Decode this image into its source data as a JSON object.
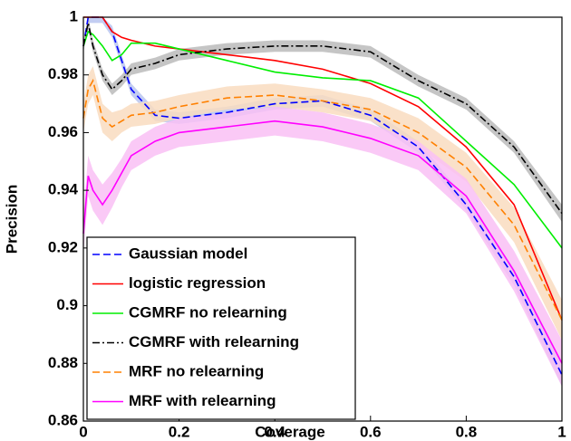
{
  "chart_data": {
    "type": "line",
    "xlabel": "Coverage",
    "ylabel": "Precision",
    "x": [
      0,
      0.01,
      0.02,
      0.04,
      0.06,
      0.08,
      0.1,
      0.15,
      0.2,
      0.3,
      0.4,
      0.5,
      0.6,
      0.7,
      0.8,
      0.9,
      1.0
    ],
    "xlim": [
      0,
      1
    ],
    "xticks": [
      0,
      0.2,
      0.4,
      0.6,
      0.8,
      1
    ],
    "ylim": [
      0.86,
      1
    ],
    "yticks": [
      0.86,
      0.88,
      0.9,
      0.92,
      0.94,
      0.96,
      0.98,
      1
    ],
    "legend": "lower-left",
    "series": [
      {
        "name": "Gaussian model",
        "color": "#0000ff",
        "dash": "dashed",
        "band_color": "#b8c4f0",
        "values": [
          0.99,
          1.0,
          1.0,
          1.0,
          0.995,
          0.985,
          0.975,
          0.966,
          0.965,
          0.967,
          0.97,
          0.971,
          0.966,
          0.955,
          0.935,
          0.91,
          0.876
        ],
        "upper": [
          0.992,
          1.0,
          1.0,
          1.0,
          0.997,
          0.987,
          0.977,
          0.968,
          0.967,
          0.969,
          0.972,
          0.973,
          0.968,
          0.957,
          0.937,
          0.913,
          0.88
        ],
        "lower": [
          0.988,
          0.998,
          0.998,
          0.998,
          0.993,
          0.983,
          0.973,
          0.964,
          0.963,
          0.965,
          0.968,
          0.969,
          0.964,
          0.953,
          0.933,
          0.907,
          0.872
        ]
      },
      {
        "name": "logistic regression",
        "color": "#ff0000",
        "dash": "solid",
        "values": [
          1.0,
          1.0,
          1.0,
          1.0,
          0.995,
          0.993,
          0.992,
          0.99,
          0.989,
          0.987,
          0.985,
          0.982,
          0.977,
          0.969,
          0.955,
          0.935,
          0.895
        ]
      },
      {
        "name": "CGMRF no relearning",
        "color": "#00ee00",
        "dash": "solid",
        "values": [
          0.99,
          0.995,
          0.994,
          0.99,
          0.985,
          0.987,
          0.991,
          0.991,
          0.989,
          0.985,
          0.981,
          0.979,
          0.978,
          0.972,
          0.957,
          0.942,
          0.92
        ]
      },
      {
        "name": "CGMRF with relearning",
        "color": "#000000",
        "dash": "dashdot",
        "band_color": "#bbbbbb",
        "values": [
          0.99,
          0.998,
          0.99,
          0.98,
          0.975,
          0.978,
          0.982,
          0.984,
          0.987,
          0.989,
          0.99,
          0.99,
          0.988,
          0.978,
          0.97,
          0.955,
          0.932
        ],
        "upper": [
          0.992,
          1.0,
          0.992,
          0.982,
          0.977,
          0.98,
          0.984,
          0.986,
          0.989,
          0.991,
          0.992,
          0.992,
          0.99,
          0.98,
          0.972,
          0.957,
          0.935
        ],
        "lower": [
          0.988,
          0.996,
          0.988,
          0.978,
          0.973,
          0.976,
          0.98,
          0.982,
          0.985,
          0.987,
          0.988,
          0.988,
          0.986,
          0.976,
          0.968,
          0.953,
          0.929
        ]
      },
      {
        "name": "MRF no relearning",
        "color": "#ff8000",
        "dash": "dashed",
        "band_color": "#f9dcbf",
        "values": [
          0.965,
          0.975,
          0.978,
          0.965,
          0.962,
          0.964,
          0.966,
          0.967,
          0.969,
          0.972,
          0.973,
          0.971,
          0.968,
          0.96,
          0.948,
          0.928,
          0.895
        ],
        "upper": [
          0.97,
          0.98,
          0.983,
          0.97,
          0.967,
          0.968,
          0.97,
          0.971,
          0.973,
          0.976,
          0.977,
          0.975,
          0.972,
          0.965,
          0.953,
          0.934,
          0.902
        ],
        "lower": [
          0.96,
          0.97,
          0.973,
          0.96,
          0.957,
          0.96,
          0.962,
          0.963,
          0.965,
          0.968,
          0.969,
          0.967,
          0.964,
          0.955,
          0.943,
          0.922,
          0.888
        ]
      },
      {
        "name": "MRF with relearning",
        "color": "#ff00ff",
        "dash": "solid",
        "band_color": "#f9bff5",
        "values": [
          0.925,
          0.945,
          0.94,
          0.935,
          0.94,
          0.946,
          0.952,
          0.957,
          0.96,
          0.962,
          0.964,
          0.962,
          0.958,
          0.952,
          0.938,
          0.912,
          0.88
        ],
        "upper": [
          0.932,
          0.952,
          0.947,
          0.942,
          0.946,
          0.951,
          0.957,
          0.962,
          0.965,
          0.967,
          0.969,
          0.967,
          0.963,
          0.957,
          0.944,
          0.919,
          0.888
        ],
        "lower": [
          0.918,
          0.938,
          0.933,
          0.928,
          0.934,
          0.941,
          0.947,
          0.952,
          0.955,
          0.957,
          0.959,
          0.957,
          0.953,
          0.947,
          0.932,
          0.905,
          0.872
        ]
      }
    ]
  }
}
